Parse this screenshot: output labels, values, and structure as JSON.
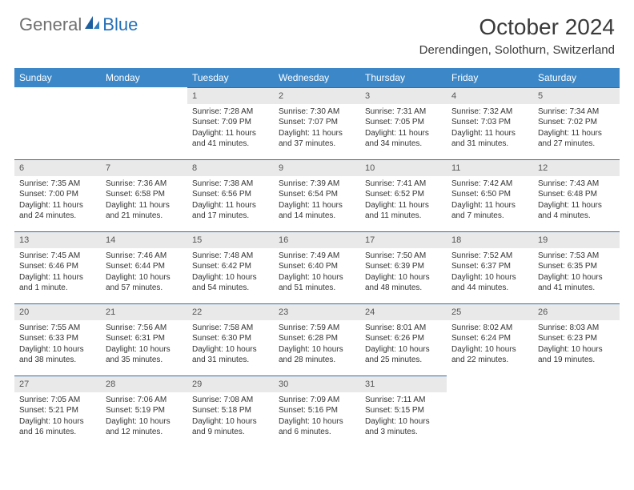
{
  "logo": {
    "text1": "General",
    "text2": "Blue"
  },
  "title": "October 2024",
  "location": "Derendingen, Solothurn, Switzerland",
  "colors": {
    "header_bg": "#3b87c8",
    "header_text": "#ffffff",
    "daynum_bg": "#e9e9e9",
    "daynum_border": "#2f6fa8",
    "body_text": "#333333",
    "logo_gray": "#707070",
    "logo_blue": "#2470b8"
  },
  "dayHeaders": [
    "Sunday",
    "Monday",
    "Tuesday",
    "Wednesday",
    "Thursday",
    "Friday",
    "Saturday"
  ],
  "weeks": [
    [
      null,
      null,
      {
        "n": "1",
        "s": "Sunrise: 7:28 AM",
        "t": "Sunset: 7:09 PM",
        "d": "Daylight: 11 hours and 41 minutes."
      },
      {
        "n": "2",
        "s": "Sunrise: 7:30 AM",
        "t": "Sunset: 7:07 PM",
        "d": "Daylight: 11 hours and 37 minutes."
      },
      {
        "n": "3",
        "s": "Sunrise: 7:31 AM",
        "t": "Sunset: 7:05 PM",
        "d": "Daylight: 11 hours and 34 minutes."
      },
      {
        "n": "4",
        "s": "Sunrise: 7:32 AM",
        "t": "Sunset: 7:03 PM",
        "d": "Daylight: 11 hours and 31 minutes."
      },
      {
        "n": "5",
        "s": "Sunrise: 7:34 AM",
        "t": "Sunset: 7:02 PM",
        "d": "Daylight: 11 hours and 27 minutes."
      }
    ],
    [
      {
        "n": "6",
        "s": "Sunrise: 7:35 AM",
        "t": "Sunset: 7:00 PM",
        "d": "Daylight: 11 hours and 24 minutes."
      },
      {
        "n": "7",
        "s": "Sunrise: 7:36 AM",
        "t": "Sunset: 6:58 PM",
        "d": "Daylight: 11 hours and 21 minutes."
      },
      {
        "n": "8",
        "s": "Sunrise: 7:38 AM",
        "t": "Sunset: 6:56 PM",
        "d": "Daylight: 11 hours and 17 minutes."
      },
      {
        "n": "9",
        "s": "Sunrise: 7:39 AM",
        "t": "Sunset: 6:54 PM",
        "d": "Daylight: 11 hours and 14 minutes."
      },
      {
        "n": "10",
        "s": "Sunrise: 7:41 AM",
        "t": "Sunset: 6:52 PM",
        "d": "Daylight: 11 hours and 11 minutes."
      },
      {
        "n": "11",
        "s": "Sunrise: 7:42 AM",
        "t": "Sunset: 6:50 PM",
        "d": "Daylight: 11 hours and 7 minutes."
      },
      {
        "n": "12",
        "s": "Sunrise: 7:43 AM",
        "t": "Sunset: 6:48 PM",
        "d": "Daylight: 11 hours and 4 minutes."
      }
    ],
    [
      {
        "n": "13",
        "s": "Sunrise: 7:45 AM",
        "t": "Sunset: 6:46 PM",
        "d": "Daylight: 11 hours and 1 minute."
      },
      {
        "n": "14",
        "s": "Sunrise: 7:46 AM",
        "t": "Sunset: 6:44 PM",
        "d": "Daylight: 10 hours and 57 minutes."
      },
      {
        "n": "15",
        "s": "Sunrise: 7:48 AM",
        "t": "Sunset: 6:42 PM",
        "d": "Daylight: 10 hours and 54 minutes."
      },
      {
        "n": "16",
        "s": "Sunrise: 7:49 AM",
        "t": "Sunset: 6:40 PM",
        "d": "Daylight: 10 hours and 51 minutes."
      },
      {
        "n": "17",
        "s": "Sunrise: 7:50 AM",
        "t": "Sunset: 6:39 PM",
        "d": "Daylight: 10 hours and 48 minutes."
      },
      {
        "n": "18",
        "s": "Sunrise: 7:52 AM",
        "t": "Sunset: 6:37 PM",
        "d": "Daylight: 10 hours and 44 minutes."
      },
      {
        "n": "19",
        "s": "Sunrise: 7:53 AM",
        "t": "Sunset: 6:35 PM",
        "d": "Daylight: 10 hours and 41 minutes."
      }
    ],
    [
      {
        "n": "20",
        "s": "Sunrise: 7:55 AM",
        "t": "Sunset: 6:33 PM",
        "d": "Daylight: 10 hours and 38 minutes."
      },
      {
        "n": "21",
        "s": "Sunrise: 7:56 AM",
        "t": "Sunset: 6:31 PM",
        "d": "Daylight: 10 hours and 35 minutes."
      },
      {
        "n": "22",
        "s": "Sunrise: 7:58 AM",
        "t": "Sunset: 6:30 PM",
        "d": "Daylight: 10 hours and 31 minutes."
      },
      {
        "n": "23",
        "s": "Sunrise: 7:59 AM",
        "t": "Sunset: 6:28 PM",
        "d": "Daylight: 10 hours and 28 minutes."
      },
      {
        "n": "24",
        "s": "Sunrise: 8:01 AM",
        "t": "Sunset: 6:26 PM",
        "d": "Daylight: 10 hours and 25 minutes."
      },
      {
        "n": "25",
        "s": "Sunrise: 8:02 AM",
        "t": "Sunset: 6:24 PM",
        "d": "Daylight: 10 hours and 22 minutes."
      },
      {
        "n": "26",
        "s": "Sunrise: 8:03 AM",
        "t": "Sunset: 6:23 PM",
        "d": "Daylight: 10 hours and 19 minutes."
      }
    ],
    [
      {
        "n": "27",
        "s": "Sunrise: 7:05 AM",
        "t": "Sunset: 5:21 PM",
        "d": "Daylight: 10 hours and 16 minutes."
      },
      {
        "n": "28",
        "s": "Sunrise: 7:06 AM",
        "t": "Sunset: 5:19 PM",
        "d": "Daylight: 10 hours and 12 minutes."
      },
      {
        "n": "29",
        "s": "Sunrise: 7:08 AM",
        "t": "Sunset: 5:18 PM",
        "d": "Daylight: 10 hours and 9 minutes."
      },
      {
        "n": "30",
        "s": "Sunrise: 7:09 AM",
        "t": "Sunset: 5:16 PM",
        "d": "Daylight: 10 hours and 6 minutes."
      },
      {
        "n": "31",
        "s": "Sunrise: 7:11 AM",
        "t": "Sunset: 5:15 PM",
        "d": "Daylight: 10 hours and 3 minutes."
      },
      null,
      null
    ]
  ]
}
